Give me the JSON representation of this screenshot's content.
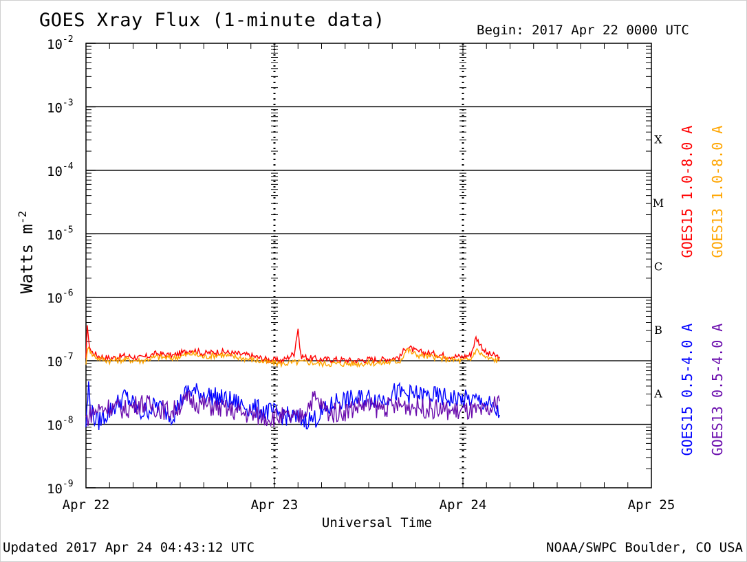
{
  "header": {
    "title": "GOES Xray Flux (1-minute data)",
    "begin": "Begin:  2017 Apr 22 0000 UTC"
  },
  "footer": {
    "updated": "Updated 2017 Apr 24 04:43:12 UTC",
    "credit": "NOAA/SWPC Boulder, CO USA"
  },
  "colors": {
    "goes15_long": "#ff0000",
    "goes13_long": "#ffa500",
    "goes15_short": "#0000ff",
    "goes13_short": "#6a0dad",
    "grid": "#000000"
  },
  "chart_data": {
    "type": "line",
    "title": "GOES Xray Flux (1-minute data)",
    "xlabel": "Universal Time",
    "ylabel": "Watts m",
    "ylabel_exp": "-2",
    "yscale": "log",
    "ylim": [
      1e-09,
      0.01
    ],
    "xlim": [
      "2017-04-22 00:00",
      "2017-04-25 00:00"
    ],
    "x_ticks": [
      "Apr 22",
      "Apr 23",
      "Apr 24",
      "Apr 25"
    ],
    "y_ticks": [
      {
        "value": 1e-09,
        "base": "10",
        "exp": "-9"
      },
      {
        "value": 1e-08,
        "base": "10",
        "exp": "-8"
      },
      {
        "value": 1e-07,
        "base": "10",
        "exp": "-7"
      },
      {
        "value": 1e-06,
        "base": "10",
        "exp": "-6"
      },
      {
        "value": 1e-05,
        "base": "10",
        "exp": "-5"
      },
      {
        "value": 0.0001,
        "base": "10",
        "exp": "-4"
      },
      {
        "value": 0.001,
        "base": "10",
        "exp": "-3"
      },
      {
        "value": 0.01,
        "base": "10",
        "exp": "-2"
      }
    ],
    "horizontal_grid": [
      1e-08,
      1e-07,
      1e-06,
      1e-05,
      0.0001,
      0.001
    ],
    "flare_classes": [
      {
        "label": "A",
        "low": 1e-08,
        "high": 1e-07
      },
      {
        "label": "B",
        "low": 1e-07,
        "high": 1e-06
      },
      {
        "label": "C",
        "low": 1e-06,
        "high": 1e-05
      },
      {
        "label": "M",
        "low": 1e-05,
        "high": 0.0001
      },
      {
        "label": "X",
        "low": 0.0001,
        "high": 0.001
      }
    ],
    "series": [
      {
        "name": "GOES15 1.0-8.0 A",
        "color": "#ff0000",
        "x": [
          "2017-04-22 00:00",
          "2017-04-22 00:10",
          "2017-04-22 00:20",
          "2017-04-22 00:40",
          "2017-04-22 01:30",
          "2017-04-22 03:00",
          "2017-04-22 05:00",
          "2017-04-22 07:00",
          "2017-04-22 09:00",
          "2017-04-22 11:00",
          "2017-04-22 13:30",
          "2017-04-22 15:00",
          "2017-04-22 17:00",
          "2017-04-22 19:00",
          "2017-04-22 21:00",
          "2017-04-22 23:00",
          "2017-04-23 01:00",
          "2017-04-23 02:30",
          "2017-04-23 03:00",
          "2017-04-23 03:20",
          "2017-04-23 04:30",
          "2017-04-23 06:00",
          "2017-04-23 08:00",
          "2017-04-23 10:00",
          "2017-04-23 12:00",
          "2017-04-23 14:00",
          "2017-04-23 16:00",
          "2017-04-23 16:50",
          "2017-04-23 18:00",
          "2017-04-23 20:00",
          "2017-04-23 22:00",
          "2017-04-24 00:00",
          "2017-04-24 01:00",
          "2017-04-24 01:40",
          "2017-04-24 03:00",
          "2017-04-24 04:40"
        ],
        "y": [
          1e-07,
          4e-07,
          2e-07,
          1.4e-07,
          1.2e-07,
          1.1e-07,
          1.2e-07,
          1.1e-07,
          1.3e-07,
          1.2e-07,
          1.5e-07,
          1.3e-07,
          1.4e-07,
          1.3e-07,
          1.2e-07,
          1.05e-07,
          1e-07,
          1.3e-07,
          3.3e-07,
          1.2e-07,
          1.1e-07,
          1.05e-07,
          1.05e-07,
          1e-07,
          1.05e-07,
          1.05e-07,
          1.15e-07,
          1.7e-07,
          1.4e-07,
          1.3e-07,
          1.2e-07,
          1.15e-07,
          1.25e-07,
          2.3e-07,
          1.3e-07,
          1.15e-07
        ]
      },
      {
        "name": "GOES13 1.0-8.0 A",
        "color": "#ffa500",
        "x": [
          "2017-04-22 00:00",
          "2017-04-22 00:20",
          "2017-04-22 00:40",
          "2017-04-22 01:30",
          "2017-04-22 03:00",
          "2017-04-22 05:00",
          "2017-04-22 07:00",
          "2017-04-22 09:00",
          "2017-04-22 11:00",
          "2017-04-22 13:30",
          "2017-04-22 15:00",
          "2017-04-22 17:00",
          "2017-04-22 19:00",
          "2017-04-22 21:00",
          "2017-04-22 23:00",
          "2017-04-23 01:00",
          "2017-04-23 03:00",
          "2017-04-23 04:30",
          "2017-04-23 06:00",
          "2017-04-23 08:00",
          "2017-04-23 10:00",
          "2017-04-23 12:00",
          "2017-04-23 14:00",
          "2017-04-23 16:00",
          "2017-04-23 16:50",
          "2017-04-23 18:00",
          "2017-04-23 20:00",
          "2017-04-23 22:00",
          "2017-04-24 00:00",
          "2017-04-24 01:00",
          "2017-04-24 01:40",
          "2017-04-24 03:00",
          "2017-04-24 04:40"
        ],
        "y": [
          9.5e-08,
          1.8e-07,
          1.3e-07,
          1.1e-07,
          1e-07,
          1.05e-07,
          1e-07,
          1.15e-07,
          1.1e-07,
          1.3e-07,
          1.15e-07,
          1.25e-07,
          1.15e-07,
          1.05e-07,
          9.5e-08,
          9e-08,
          9.5e-08,
          9.5e-08,
          9e-08,
          9e-08,
          9e-08,
          9.2e-08,
          9.3e-08,
          1e-07,
          1.5e-07,
          1.25e-07,
          1.15e-07,
          1.05e-07,
          1e-07,
          1.05e-07,
          1.5e-07,
          1.1e-07,
          1e-07
        ]
      },
      {
        "name": "GOES15 0.5-4.0 A",
        "color": "#0000ff",
        "x": [
          "2017-04-22 00:00",
          "2017-04-22 00:20",
          "2017-04-22 00:40",
          "2017-04-22 01:30",
          "2017-04-22 03:00",
          "2017-04-22 05:00",
          "2017-04-22 07:00",
          "2017-04-22 09:00",
          "2017-04-22 11:00",
          "2017-04-22 13:00",
          "2017-04-22 15:00",
          "2017-04-22 17:00",
          "2017-04-22 19:00",
          "2017-04-22 21:00",
          "2017-04-22 23:00",
          "2017-04-23 01:00",
          "2017-04-23 03:00",
          "2017-04-23 05:00",
          "2017-04-23 07:00",
          "2017-04-23 08:00",
          "2017-04-23 10:00",
          "2017-04-23 12:00",
          "2017-04-23 14:00",
          "2017-04-23 15:00",
          "2017-04-23 17:00",
          "2017-04-23 19:00",
          "2017-04-23 21:00",
          "2017-04-23 23:00",
          "2017-04-24 01:00",
          "2017-04-24 03:00",
          "2017-04-24 04:40"
        ],
        "y": [
          1e-08,
          4e-08,
          1.5e-08,
          1.1e-08,
          1.6e-08,
          2.8e-08,
          1.5e-08,
          2e-08,
          1.4e-08,
          3.4e-08,
          3e-08,
          2.6e-08,
          2.2e-08,
          1.8e-08,
          1.6e-08,
          1.4e-08,
          1.2e-08,
          1.2e-08,
          1.8e-08,
          2.4e-08,
          2.4e-08,
          2.6e-08,
          2.5e-08,
          3.2e-08,
          3e-08,
          2.8e-08,
          2.7e-08,
          2.5e-08,
          2.4e-08,
          2.2e-08,
          1.4e-08
        ]
      },
      {
        "name": "GOES13 0.5-4.0 A",
        "color": "#6a0dad",
        "x": [
          "2017-04-22 00:00",
          "2017-04-22 00:40",
          "2017-04-22 01:30",
          "2017-04-22 03:00",
          "2017-04-22 05:00",
          "2017-04-22 07:00",
          "2017-04-22 09:00",
          "2017-04-22 11:00",
          "2017-04-22 13:00",
          "2017-04-22 15:00",
          "2017-04-22 17:00",
          "2017-04-22 19:00",
          "2017-04-22 21:00",
          "2017-04-22 23:00",
          "2017-04-23 01:00",
          "2017-04-23 03:00",
          "2017-04-23 05:00",
          "2017-04-23 07:00",
          "2017-04-23 09:00",
          "2017-04-23 11:00",
          "2017-04-23 13:00",
          "2017-04-23 15:00",
          "2017-04-23 17:00",
          "2017-04-23 19:00",
          "2017-04-23 21:00",
          "2017-04-23 23:00",
          "2017-04-24 01:00",
          "2017-04-24 03:00",
          "2017-04-24 04:40"
        ],
        "y": [
          1.2e-08,
          1.5e-08,
          1.7e-08,
          1.9e-08,
          1.7e-08,
          2.2e-08,
          1.8e-08,
          1.6e-08,
          2.5e-08,
          2e-08,
          1.8e-08,
          1.6e-08,
          1.4e-08,
          1.3e-08,
          1.3e-08,
          1.2e-08,
          2.6e-08,
          1.5e-08,
          1.6e-08,
          2e-08,
          1.8e-08,
          1.9e-08,
          2e-08,
          1.8e-08,
          1.7e-08,
          1.6e-08,
          1.6e-08,
          1.5e-08,
          2.3e-08
        ]
      }
    ]
  }
}
